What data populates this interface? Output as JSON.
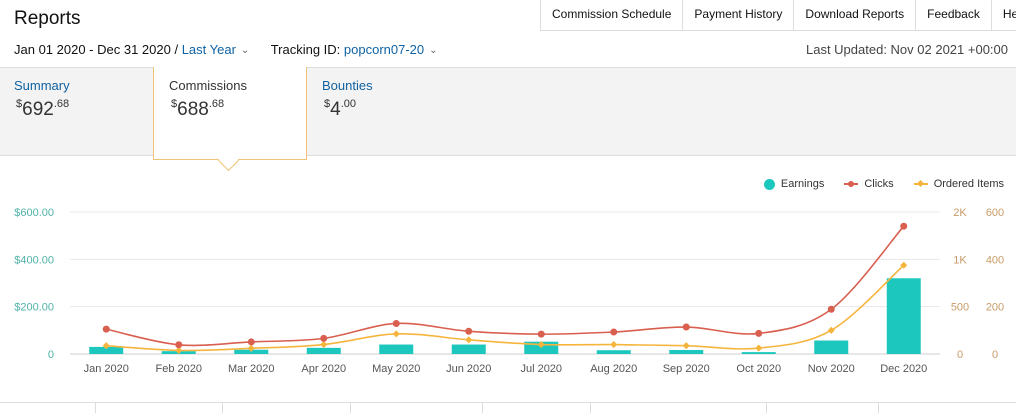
{
  "header": {
    "title": "Reports",
    "nav": [
      "Commission Schedule",
      "Payment History",
      "Download Reports",
      "Feedback",
      "Help"
    ]
  },
  "filters": {
    "date_range": "Jan 01 2020 - Dec 31 2020 /",
    "period": "Last Year",
    "tracking_label": "Tracking ID:",
    "tracking_id": "popcorn07-20",
    "last_updated": "Last Updated: Nov 02 2021 +00:00"
  },
  "tabs": {
    "summary": {
      "label": "Summary",
      "currency": "$",
      "whole": "692",
      "cents": ".68"
    },
    "commissions": {
      "label": "Commissions",
      "currency": "$",
      "whole": "688",
      "cents": ".68"
    },
    "bounties": {
      "label": "Bounties",
      "currency": "$",
      "whole": "4",
      "cents": ".00"
    }
  },
  "legend": {
    "earnings": "Earnings",
    "clicks": "Clicks",
    "ordered": "Ordered Items"
  },
  "colors": {
    "earnings": "#1cc8be",
    "clicks": "#d95f4f",
    "ordered": "#f5b53d",
    "link": "#0f62a3",
    "left_axis": "#4fb3a9",
    "right_axis": "#c89b67"
  },
  "chart_data": {
    "type": "bar",
    "categories": [
      "Jan 2020",
      "Feb 2020",
      "Mar 2020",
      "Apr 2020",
      "May 2020",
      "Jun 2020",
      "Jul 2020",
      "Aug 2020",
      "Sep 2020",
      "Oct 2020",
      "Nov 2020",
      "Dec 2020"
    ],
    "series": [
      {
        "name": "Earnings",
        "type": "bar",
        "axis": "left",
        "values": [
          30,
          12,
          18,
          26,
          40,
          40,
          52,
          16,
          17,
          8,
          57,
          320
        ]
      },
      {
        "name": "Clicks",
        "type": "line",
        "axis": "right1",
        "values": [
          350,
          130,
          170,
          220,
          430,
          320,
          280,
          310,
          380,
          290,
          630,
          1800
        ]
      },
      {
        "name": "Ordered Items",
        "type": "line",
        "axis": "right2",
        "values": [
          35,
          15,
          24,
          40,
          85,
          60,
          40,
          40,
          35,
          25,
          100,
          375
        ]
      }
    ],
    "left_axis": {
      "ticks": [
        "$600.00",
        "$400.00",
        "$200.00",
        "0"
      ],
      "range": [
        0,
        600
      ]
    },
    "right_axis_1": {
      "ticks": [
        "2K",
        "1K",
        "500",
        "0"
      ]
    },
    "right_axis_2": {
      "ticks": [
        "600",
        "400",
        "200",
        "0"
      ],
      "range": [
        0,
        600
      ]
    },
    "grid": true,
    "legend_position": "top-right"
  }
}
